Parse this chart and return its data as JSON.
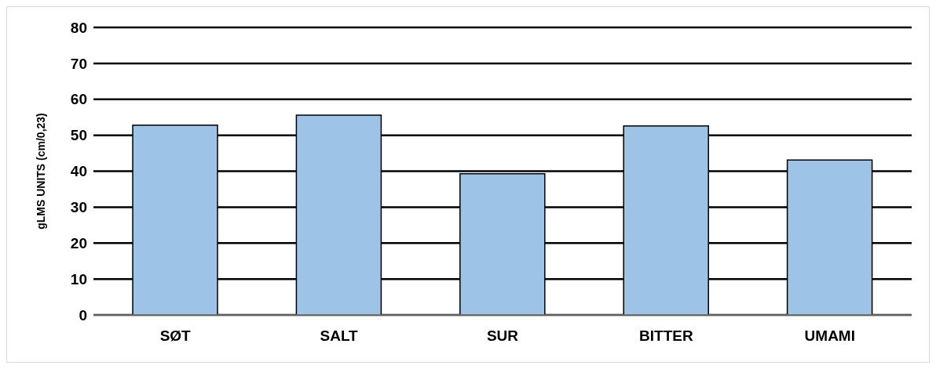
{
  "chart_data": {
    "type": "bar",
    "ylabel": "gLMS UNITS (cm/0,23)",
    "categories": [
      "SØT",
      "SALT",
      "SUR",
      "BITTER",
      "UMAMI"
    ],
    "values": [
      52.8,
      55.6,
      39.3,
      52.6,
      43.1
    ],
    "color": "#9dc3e6",
    "ylim": [
      0,
      80
    ],
    "yticks": [
      0,
      10,
      20,
      30,
      40,
      50,
      60,
      70,
      80
    ],
    "grid": "y"
  }
}
